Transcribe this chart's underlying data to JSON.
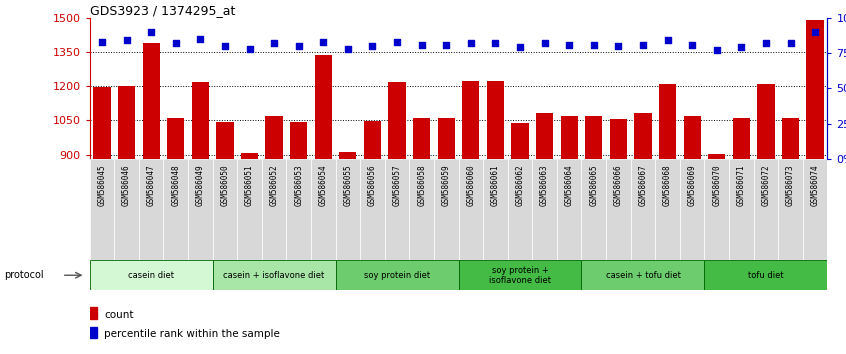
{
  "title": "GDS3923 / 1374295_at",
  "samples": [
    "GSM586045",
    "GSM586046",
    "GSM586047",
    "GSM586048",
    "GSM586049",
    "GSM586050",
    "GSM586051",
    "GSM586052",
    "GSM586053",
    "GSM586054",
    "GSM586055",
    "GSM586056",
    "GSM586057",
    "GSM586058",
    "GSM586059",
    "GSM586060",
    "GSM586061",
    "GSM586062",
    "GSM586063",
    "GSM586064",
    "GSM586065",
    "GSM586066",
    "GSM586067",
    "GSM586068",
    "GSM586069",
    "GSM586070",
    "GSM586071",
    "GSM586072",
    "GSM586073",
    "GSM586074"
  ],
  "counts": [
    1195,
    1200,
    1390,
    1063,
    1220,
    1042,
    908,
    1070,
    1043,
    1335,
    912,
    1048,
    1220,
    1063,
    1063,
    1225,
    1225,
    1038,
    1083,
    1070,
    1070,
    1057,
    1082,
    1210,
    1068,
    905,
    1060,
    1208,
    1063,
    1490
  ],
  "percentiles": [
    83,
    84,
    90,
    82,
    85,
    80,
    78,
    82,
    80,
    83,
    78,
    80,
    83,
    81,
    81,
    82,
    82,
    79,
    82,
    81,
    81,
    80,
    81,
    84,
    81,
    77,
    79,
    82,
    82,
    90
  ],
  "groups": [
    {
      "label": "casein diet",
      "start": 0,
      "end": 5,
      "color": "#d4f7d4"
    },
    {
      "label": "casein + isoflavone diet",
      "start": 5,
      "end": 10,
      "color": "#a8e6a8"
    },
    {
      "label": "soy protein diet",
      "start": 10,
      "end": 15,
      "color": "#6dcc6d"
    },
    {
      "label": "soy protein +\nisoflavone diet",
      "start": 15,
      "end": 20,
      "color": "#44bb44"
    },
    {
      "label": "casein + tofu diet",
      "start": 20,
      "end": 25,
      "color": "#6dcc6d"
    },
    {
      "label": "tofu diet",
      "start": 25,
      "end": 30,
      "color": "#44bb44"
    }
  ],
  "ylim_left": [
    880,
    1500
  ],
  "ylim_right": [
    0,
    100
  ],
  "yticks_left": [
    900,
    1050,
    1200,
    1350,
    1500
  ],
  "yticks_right": [
    0,
    25,
    50,
    75,
    100
  ],
  "bar_color": "#cc0000",
  "dot_color": "#0000cc",
  "xtick_bg": "#d8d8d8",
  "border_color": "#006600"
}
